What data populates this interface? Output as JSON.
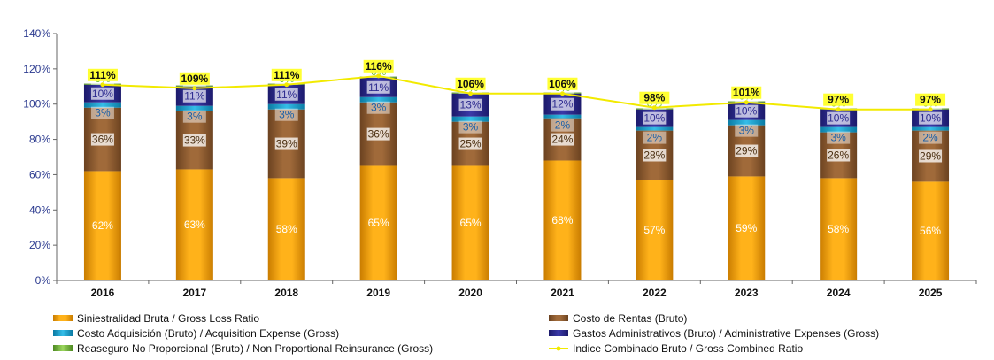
{
  "chart_data": {
    "type": "bar",
    "stacked": true,
    "categories": [
      "2016",
      "2017",
      "2018",
      "2019",
      "2020",
      "2021",
      "2022",
      "2023",
      "2024",
      "2025"
    ],
    "ylim": [
      0,
      140
    ],
    "yticks": [
      "0%",
      "20%",
      "40%",
      "60%",
      "80%",
      "100%",
      "120%",
      "140%"
    ],
    "series": [
      {
        "name": "Siniestralidad Bruta / Gross Loss Ratio",
        "color": "#f5a000",
        "values": [
          62,
          63,
          58,
          65,
          65,
          68,
          57,
          59,
          58,
          56
        ],
        "labels": [
          "62%",
          "63%",
          "58%",
          "65%",
          "65%",
          "68%",
          "57%",
          "59%",
          "58%",
          "56%"
        ]
      },
      {
        "name": "Costo de Rentas (Bruto)",
        "color": "#8b5a2b",
        "values": [
          36,
          33,
          39,
          36,
          25,
          24,
          28,
          29,
          26,
          29
        ],
        "labels": [
          "36%",
          "33%",
          "39%",
          "36%",
          "25%",
          "24%",
          "28%",
          "29%",
          "26%",
          "29%"
        ]
      },
      {
        "name": "Costo Adquisición (Bruto) / Acquisition Expense (Gross)",
        "color": "#1aa3d1",
        "values": [
          3,
          3,
          3,
          3,
          3,
          2,
          2,
          3,
          3,
          2
        ],
        "labels": [
          "3%",
          "3%",
          "3%",
          "3%",
          "3%",
          "2%",
          "2%",
          "3%",
          "3%",
          "2%"
        ]
      },
      {
        "name": "Gastos Administrativos (Bruto) / Administrative Expenses (Gross)",
        "color": "#2e2c8f",
        "values": [
          10,
          11,
          11,
          11,
          13,
          12,
          10,
          10,
          10,
          10
        ],
        "labels": [
          "10%",
          "11%",
          "11%",
          "11%",
          "13%",
          "12%",
          "10%",
          "10%",
          "10%",
          "10%"
        ]
      },
      {
        "name": "Reaseguro No Proporcional (Bruto) / Non Proportional Reinsurance (Gross)",
        "color": "#7ac142",
        "values": [
          0,
          0,
          0,
          0,
          0,
          0,
          0,
          0,
          0,
          0
        ],
        "labels": [
          "0%",
          "0%",
          "0%",
          "0%",
          "0%",
          "0%",
          "0%",
          "0%",
          "0%",
          "0%"
        ]
      }
    ],
    "line": {
      "name": "Indice Combinado Bruto / Gross Combined Ratio",
      "color": "#f2ea00",
      "values": [
        111,
        109,
        111,
        116,
        106,
        106,
        98,
        101,
        97,
        97
      ],
      "labels": [
        "111%",
        "109%",
        "111%",
        "116%",
        "106%",
        "106%",
        "98%",
        "101%",
        "97%",
        "97%"
      ]
    },
    "legend_position": "bottom"
  }
}
